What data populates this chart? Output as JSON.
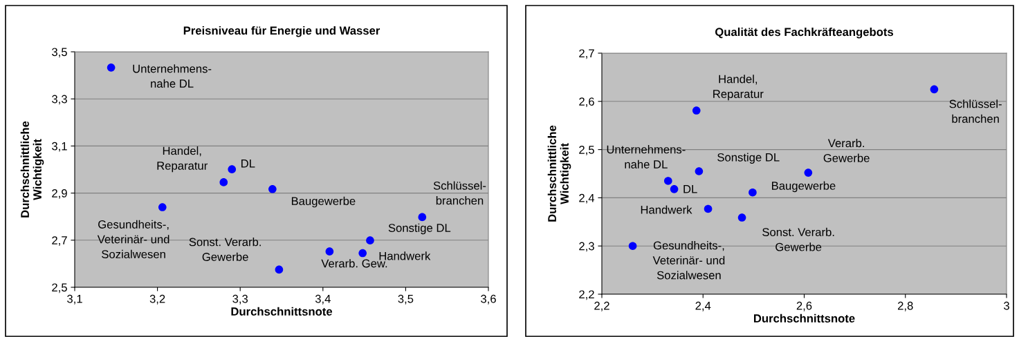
{
  "chart_data": [
    {
      "type": "scatter",
      "title": "Preisniveau für Energie und Wasser",
      "xlabel": "Durchschnittsnote",
      "ylabel": "Durchschnittliche\nWichtigkeit",
      "x": [
        3.144,
        3.29,
        3.28,
        3.339,
        3.206,
        3.52,
        3.457,
        3.408,
        3.448,
        3.347
      ],
      "series": [
        {
          "color": "#0000ff",
          "values": [
            3.433,
            3.001,
            2.946,
            2.917,
            2.84,
            2.798,
            2.699,
            2.652,
            2.645,
            2.575
          ]
        }
      ],
      "xlim": [
        3.1,
        3.6
      ],
      "ylim": [
        2.5,
        3.5
      ],
      "xticks": [
        {
          "value": 3.1,
          "label": "3,1"
        },
        {
          "value": 3.2,
          "label": "3,2"
        },
        {
          "value": 3.3,
          "label": "3,3"
        },
        {
          "value": 3.4,
          "label": "3,4"
        },
        {
          "value": 3.5,
          "label": "3,5"
        },
        {
          "value": 3.6,
          "label": "3,6"
        }
      ],
      "yticks": [
        {
          "value": 2.5,
          "label": "2,5"
        },
        {
          "value": 2.7,
          "label": "2,7"
        },
        {
          "value": 2.9,
          "label": "2,9"
        },
        {
          "value": 3.1,
          "label": "3,1"
        },
        {
          "value": 3.3,
          "label": "3,3"
        },
        {
          "value": 3.5,
          "label": "3,5"
        }
      ],
      "grid": "y",
      "marker": "circle",
      "annotations": [
        {
          "text": "Unternehmens-\nnahe DL",
          "x": 3.144,
          "y": 3.433
        },
        {
          "text": "DL",
          "x": 3.29,
          "y": 3.001
        },
        {
          "text": "Handel,\nReparatur",
          "x": 3.28,
          "y": 2.946
        },
        {
          "text": "Baugewerbe",
          "x": 3.339,
          "y": 2.917
        },
        {
          "text": "Gesundheits-,\nVeterinär- und\nSozialwesen",
          "x": 3.206,
          "y": 2.84
        },
        {
          "text": "Schlüssel-\nbranchen",
          "x": 3.52,
          "y": 2.798
        },
        {
          "text": "Sonstige DL",
          "x": 3.457,
          "y": 2.699
        },
        {
          "text": "Verarb. Gew.",
          "x": 3.408,
          "y": 2.652
        },
        {
          "text": "Handwerk",
          "x": 3.448,
          "y": 2.645
        },
        {
          "text": "Sonst. Verarb.\nGewerbe",
          "x": 3.347,
          "y": 2.575
        }
      ]
    },
    {
      "type": "scatter",
      "title": "Qualität des Fachkräfteangebots",
      "xlabel": "Durchschnittsnote",
      "ylabel": "Durchschnittliche\nWichtigkeit",
      "x": [
        2.387,
        2.857,
        2.331,
        2.343,
        2.392,
        2.608,
        2.498,
        2.41,
        2.477,
        2.261
      ],
      "series": [
        {
          "color": "#0000ff",
          "values": [
            2.581,
            2.625,
            2.435,
            2.418,
            2.455,
            2.452,
            2.411,
            2.377,
            2.359,
            2.3
          ]
        }
      ],
      "xlim": [
        2.2,
        3.0
      ],
      "ylim": [
        2.2,
        2.7
      ],
      "xticks": [
        {
          "value": 2.2,
          "label": "2,2"
        },
        {
          "value": 2.4,
          "label": "2,4"
        },
        {
          "value": 2.6,
          "label": "2,6"
        },
        {
          "value": 2.8,
          "label": "2,8"
        },
        3
      ],
      "yticks": [
        {
          "value": 2.2,
          "label": "2,2"
        },
        {
          "value": 2.3,
          "label": "2,3"
        },
        {
          "value": 2.4,
          "label": "2,4"
        },
        {
          "value": 2.5,
          "label": "2,5"
        },
        {
          "value": 2.6,
          "label": "2,6"
        },
        {
          "value": 2.7,
          "label": "2,7"
        }
      ],
      "grid": "y",
      "marker": "circle",
      "annotations": [
        {
          "text": "Handel,\nReparatur",
          "x": 2.387,
          "y": 2.581
        },
        {
          "text": "Schlüssel-\nbranchen",
          "x": 2.857,
          "y": 2.625
        },
        {
          "text": "Unternehmens-\nnahe DL",
          "x": 2.331,
          "y": 2.435
        },
        {
          "text": "DL",
          "x": 2.343,
          "y": 2.418
        },
        {
          "text": "Sonstige DL",
          "x": 2.392,
          "y": 2.455
        },
        {
          "text": "Verarb.\nGewerbe",
          "x": 2.608,
          "y": 2.452
        },
        {
          "text": "Baugewerbe",
          "x": 2.498,
          "y": 2.411
        },
        {
          "text": "Handwerk",
          "x": 2.41,
          "y": 2.377
        },
        {
          "text": "Sonst. Verarb.\nGewerbe",
          "x": 2.477,
          "y": 2.359
        },
        {
          "text": "Gesundheits-,\nVeterinär- und\nSozialwesen",
          "x": 2.261,
          "y": 2.3
        }
      ]
    }
  ]
}
